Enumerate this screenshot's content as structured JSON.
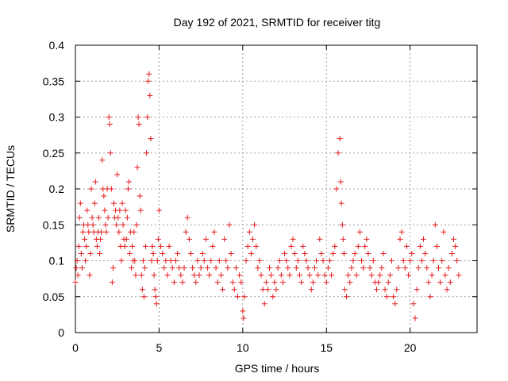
{
  "chart_data": {
    "type": "scatter",
    "title": "Day 192 of 2021, SRMTID for receiver titg",
    "xlabel": "GPS time / hours",
    "ylabel": "SRMTID / TECUs",
    "xlim": [
      0,
      24
    ],
    "ylim": [
      0,
      0.4
    ],
    "x_ticks": [
      0,
      5,
      10,
      15,
      20
    ],
    "y_ticks": [
      0,
      0.05,
      0.1,
      0.15,
      0.2,
      0.25,
      0.3,
      0.35,
      0.4
    ],
    "x_tick_labels": [
      "0",
      "5",
      "10",
      "15",
      "20"
    ],
    "y_tick_labels": [
      "0",
      "0.05",
      "0.1",
      "0.15",
      "0.2",
      "0.25",
      "0.3",
      "0.35",
      "0.4"
    ],
    "grid": true,
    "marker": "+",
    "color": "#e41a1c",
    "series": [
      {
        "points": [
          [
            0.0,
            0.07
          ],
          [
            0.05,
            0.09
          ],
          [
            0.1,
            0.1
          ],
          [
            0.15,
            0.08
          ],
          [
            0.2,
            0.12
          ],
          [
            0.25,
            0.16
          ],
          [
            0.3,
            0.18
          ],
          [
            0.35,
            0.11
          ],
          [
            0.4,
            0.09
          ],
          [
            0.45,
            0.14
          ],
          [
            0.5,
            0.15
          ],
          [
            0.55,
            0.13
          ],
          [
            0.6,
            0.1
          ],
          [
            0.65,
            0.12
          ],
          [
            0.7,
            0.17
          ],
          [
            0.75,
            0.15
          ],
          [
            0.8,
            0.14
          ],
          [
            0.85,
            0.08
          ],
          [
            0.9,
            0.11
          ],
          [
            0.95,
            0.2
          ],
          [
            1.0,
            0.16
          ],
          [
            1.05,
            0.15
          ],
          [
            1.1,
            0.14
          ],
          [
            1.15,
            0.18
          ],
          [
            1.2,
            0.21
          ],
          [
            1.25,
            0.13
          ],
          [
            1.3,
            0.12
          ],
          [
            1.35,
            0.14
          ],
          [
            1.4,
            0.16
          ],
          [
            1.45,
            0.11
          ],
          [
            1.5,
            0.13
          ],
          [
            1.55,
            0.14
          ],
          [
            1.6,
            0.24
          ],
          [
            1.65,
            0.2
          ],
          [
            1.7,
            0.19
          ],
          [
            1.75,
            0.17
          ],
          [
            1.8,
            0.15
          ],
          [
            1.85,
            0.14
          ],
          [
            1.9,
            0.2
          ],
          [
            1.95,
            0.16
          ],
          [
            2.0,
            0.3
          ],
          [
            2.05,
            0.29
          ],
          [
            2.1,
            0.25
          ],
          [
            2.15,
            0.2
          ],
          [
            2.2,
            0.07
          ],
          [
            2.25,
            0.09
          ],
          [
            2.3,
            0.18
          ],
          [
            2.35,
            0.16
          ],
          [
            2.4,
            0.17
          ],
          [
            2.45,
            0.15
          ],
          [
            2.5,
            0.22
          ],
          [
            2.55,
            0.16
          ],
          [
            2.6,
            0.14
          ],
          [
            2.65,
            0.17
          ],
          [
            2.7,
            0.12
          ],
          [
            2.75,
            0.1
          ],
          [
            2.8,
            0.18
          ],
          [
            2.85,
            0.15
          ],
          [
            2.9,
            0.13
          ],
          [
            2.95,
            0.12
          ],
          [
            3.0,
            0.17
          ],
          [
            3.05,
            0.13
          ],
          [
            3.1,
            0.16
          ],
          [
            3.15,
            0.2
          ],
          [
            3.2,
            0.21
          ],
          [
            3.25,
            0.11
          ],
          [
            3.3,
            0.14
          ],
          [
            3.35,
            0.09
          ],
          [
            3.4,
            0.12
          ],
          [
            3.45,
            0.1
          ],
          [
            3.5,
            0.14
          ],
          [
            3.55,
            0.1
          ],
          [
            3.6,
            0.08
          ],
          [
            3.65,
            0.15
          ],
          [
            3.7,
            0.23
          ],
          [
            3.75,
            0.3
          ],
          [
            3.8,
            0.29
          ],
          [
            3.85,
            0.19
          ],
          [
            3.9,
            0.17
          ],
          [
            3.95,
            0.08
          ],
          [
            4.0,
            0.06
          ],
          [
            4.05,
            0.1
          ],
          [
            4.1,
            0.05
          ],
          [
            4.15,
            0.09
          ],
          [
            4.2,
            0.12
          ],
          [
            4.25,
            0.25
          ],
          [
            4.3,
            0.3
          ],
          [
            4.35,
            0.35
          ],
          [
            4.4,
            0.36
          ],
          [
            4.45,
            0.33
          ],
          [
            4.5,
            0.27
          ],
          [
            4.55,
            0.1
          ],
          [
            4.6,
            0.12
          ],
          [
            4.65,
            0.11
          ],
          [
            4.7,
            0.08
          ],
          [
            4.75,
            0.06
          ],
          [
            4.8,
            0.05
          ],
          [
            4.85,
            0.04
          ],
          [
            4.9,
            0.1
          ],
          [
            4.95,
            0.13
          ],
          [
            5.0,
            0.17
          ],
          [
            5.1,
            0.12
          ],
          [
            5.2,
            0.11
          ],
          [
            5.3,
            0.09
          ],
          [
            5.4,
            0.1
          ],
          [
            5.5,
            0.08
          ],
          [
            5.6,
            0.12
          ],
          [
            5.7,
            0.1
          ],
          [
            5.8,
            0.09
          ],
          [
            5.9,
            0.07
          ],
          [
            6.0,
            0.1
          ],
          [
            6.1,
            0.11
          ],
          [
            6.2,
            0.09
          ],
          [
            6.3,
            0.08
          ],
          [
            6.4,
            0.07
          ],
          [
            6.5,
            0.09
          ],
          [
            6.6,
            0.14
          ],
          [
            6.7,
            0.16
          ],
          [
            6.8,
            0.13
          ],
          [
            6.9,
            0.11
          ],
          [
            7.0,
            0.09
          ],
          [
            7.1,
            0.08
          ],
          [
            7.2,
            0.07
          ],
          [
            7.3,
            0.1
          ],
          [
            7.4,
            0.08
          ],
          [
            7.5,
            0.09
          ],
          [
            7.6,
            0.11
          ],
          [
            7.7,
            0.1
          ],
          [
            7.8,
            0.13
          ],
          [
            7.9,
            0.09
          ],
          [
            8.0,
            0.08
          ],
          [
            8.1,
            0.1
          ],
          [
            8.2,
            0.12
          ],
          [
            8.3,
            0.14
          ],
          [
            8.4,
            0.09
          ],
          [
            8.5,
            0.07
          ],
          [
            8.6,
            0.1
          ],
          [
            8.7,
            0.08
          ],
          [
            8.8,
            0.06
          ],
          [
            8.9,
            0.13
          ],
          [
            9.0,
            0.1
          ],
          [
            9.1,
            0.09
          ],
          [
            9.2,
            0.15
          ],
          [
            9.3,
            0.11
          ],
          [
            9.4,
            0.07
          ],
          [
            9.5,
            0.06
          ],
          [
            9.6,
            0.09
          ],
          [
            9.7,
            0.05
          ],
          [
            9.8,
            0.08
          ],
          [
            9.9,
            0.07
          ],
          [
            10.0,
            0.03
          ],
          [
            10.05,
            0.02
          ],
          [
            10.1,
            0.05
          ],
          [
            10.2,
            0.1
          ],
          [
            10.3,
            0.12
          ],
          [
            10.4,
            0.14
          ],
          [
            10.5,
            0.11
          ],
          [
            10.6,
            0.13
          ],
          [
            10.7,
            0.15
          ],
          [
            10.8,
            0.12
          ],
          [
            10.9,
            0.09
          ],
          [
            11.0,
            0.1
          ],
          [
            11.1,
            0.08
          ],
          [
            11.2,
            0.06
          ],
          [
            11.3,
            0.04
          ],
          [
            11.4,
            0.07
          ],
          [
            11.5,
            0.06
          ],
          [
            11.6,
            0.09
          ],
          [
            11.7,
            0.08
          ],
          [
            11.8,
            0.05
          ],
          [
            11.9,
            0.07
          ],
          [
            12.0,
            0.06
          ],
          [
            12.1,
            0.09
          ],
          [
            12.2,
            0.1
          ],
          [
            12.3,
            0.08
          ],
          [
            12.4,
            0.07
          ],
          [
            12.5,
            0.11
          ],
          [
            12.6,
            0.1
          ],
          [
            12.7,
            0.09
          ],
          [
            12.8,
            0.08
          ],
          [
            12.9,
            0.12
          ],
          [
            13.0,
            0.13
          ],
          [
            13.1,
            0.11
          ],
          [
            13.2,
            0.09
          ],
          [
            13.3,
            0.1
          ],
          [
            13.4,
            0.08
          ],
          [
            13.5,
            0.07
          ],
          [
            13.6,
            0.12
          ],
          [
            13.7,
            0.11
          ],
          [
            13.8,
            0.1
          ],
          [
            13.9,
            0.09
          ],
          [
            14.0,
            0.08
          ],
          [
            14.1,
            0.06
          ],
          [
            14.2,
            0.07
          ],
          [
            14.3,
            0.09
          ],
          [
            14.4,
            0.1
          ],
          [
            14.5,
            0.08
          ],
          [
            14.6,
            0.13
          ],
          [
            14.7,
            0.11
          ],
          [
            14.8,
            0.1
          ],
          [
            14.9,
            0.08
          ],
          [
            15.0,
            0.07
          ],
          [
            15.1,
            0.09
          ],
          [
            15.2,
            0.1
          ],
          [
            15.3,
            0.08
          ],
          [
            15.4,
            0.11
          ],
          [
            15.5,
            0.12
          ],
          [
            15.6,
            0.2
          ],
          [
            15.7,
            0.25
          ],
          [
            15.8,
            0.27
          ],
          [
            15.85,
            0.21
          ],
          [
            15.9,
            0.18
          ],
          [
            15.95,
            0.15
          ],
          [
            16.0,
            0.13
          ],
          [
            16.05,
            0.11
          ],
          [
            16.1,
            0.06
          ],
          [
            16.2,
            0.05
          ],
          [
            16.3,
            0.08
          ],
          [
            16.4,
            0.07
          ],
          [
            16.5,
            0.09
          ],
          [
            16.6,
            0.1
          ],
          [
            16.7,
            0.11
          ],
          [
            16.8,
            0.08
          ],
          [
            16.9,
            0.12
          ],
          [
            17.0,
            0.14
          ],
          [
            17.1,
            0.1
          ],
          [
            17.2,
            0.09
          ],
          [
            17.3,
            0.12
          ],
          [
            17.4,
            0.13
          ],
          [
            17.5,
            0.11
          ],
          [
            17.6,
            0.09
          ],
          [
            17.7,
            0.08
          ],
          [
            17.8,
            0.1
          ],
          [
            17.9,
            0.07
          ],
          [
            18.0,
            0.06
          ],
          [
            18.1,
            0.07
          ],
          [
            18.2,
            0.08
          ],
          [
            18.3,
            0.09
          ],
          [
            18.4,
            0.11
          ],
          [
            18.5,
            0.06
          ],
          [
            18.6,
            0.05
          ],
          [
            18.7,
            0.07
          ],
          [
            18.8,
            0.08
          ],
          [
            18.9,
            0.1
          ],
          [
            19.0,
            0.05
          ],
          [
            19.1,
            0.04
          ],
          [
            19.2,
            0.06
          ],
          [
            19.3,
            0.09
          ],
          [
            19.4,
            0.13
          ],
          [
            19.5,
            0.14
          ],
          [
            19.6,
            0.1
          ],
          [
            19.7,
            0.09
          ],
          [
            19.8,
            0.12
          ],
          [
            19.9,
            0.08
          ],
          [
            20.0,
            0.1
          ],
          [
            20.1,
            0.11
          ],
          [
            20.2,
            0.04
          ],
          [
            20.3,
            0.02
          ],
          [
            20.4,
            0.06
          ],
          [
            20.5,
            0.09
          ],
          [
            20.6,
            0.12
          ],
          [
            20.7,
            0.1
          ],
          [
            20.8,
            0.13
          ],
          [
            20.9,
            0.11
          ],
          [
            21.0,
            0.09
          ],
          [
            21.1,
            0.07
          ],
          [
            21.2,
            0.05
          ],
          [
            21.3,
            0.08
          ],
          [
            21.4,
            0.1
          ],
          [
            21.5,
            0.15
          ],
          [
            21.6,
            0.12
          ],
          [
            21.7,
            0.09
          ],
          [
            21.8,
            0.07
          ],
          [
            21.9,
            0.1
          ],
          [
            22.0,
            0.14
          ],
          [
            22.1,
            0.08
          ],
          [
            22.2,
            0.06
          ],
          [
            22.3,
            0.09
          ],
          [
            22.4,
            0.07
          ],
          [
            22.5,
            0.11
          ],
          [
            22.6,
            0.13
          ],
          [
            22.7,
            0.12
          ],
          [
            22.8,
            0.1
          ],
          [
            22.9,
            0.08
          ]
        ]
      }
    ]
  }
}
